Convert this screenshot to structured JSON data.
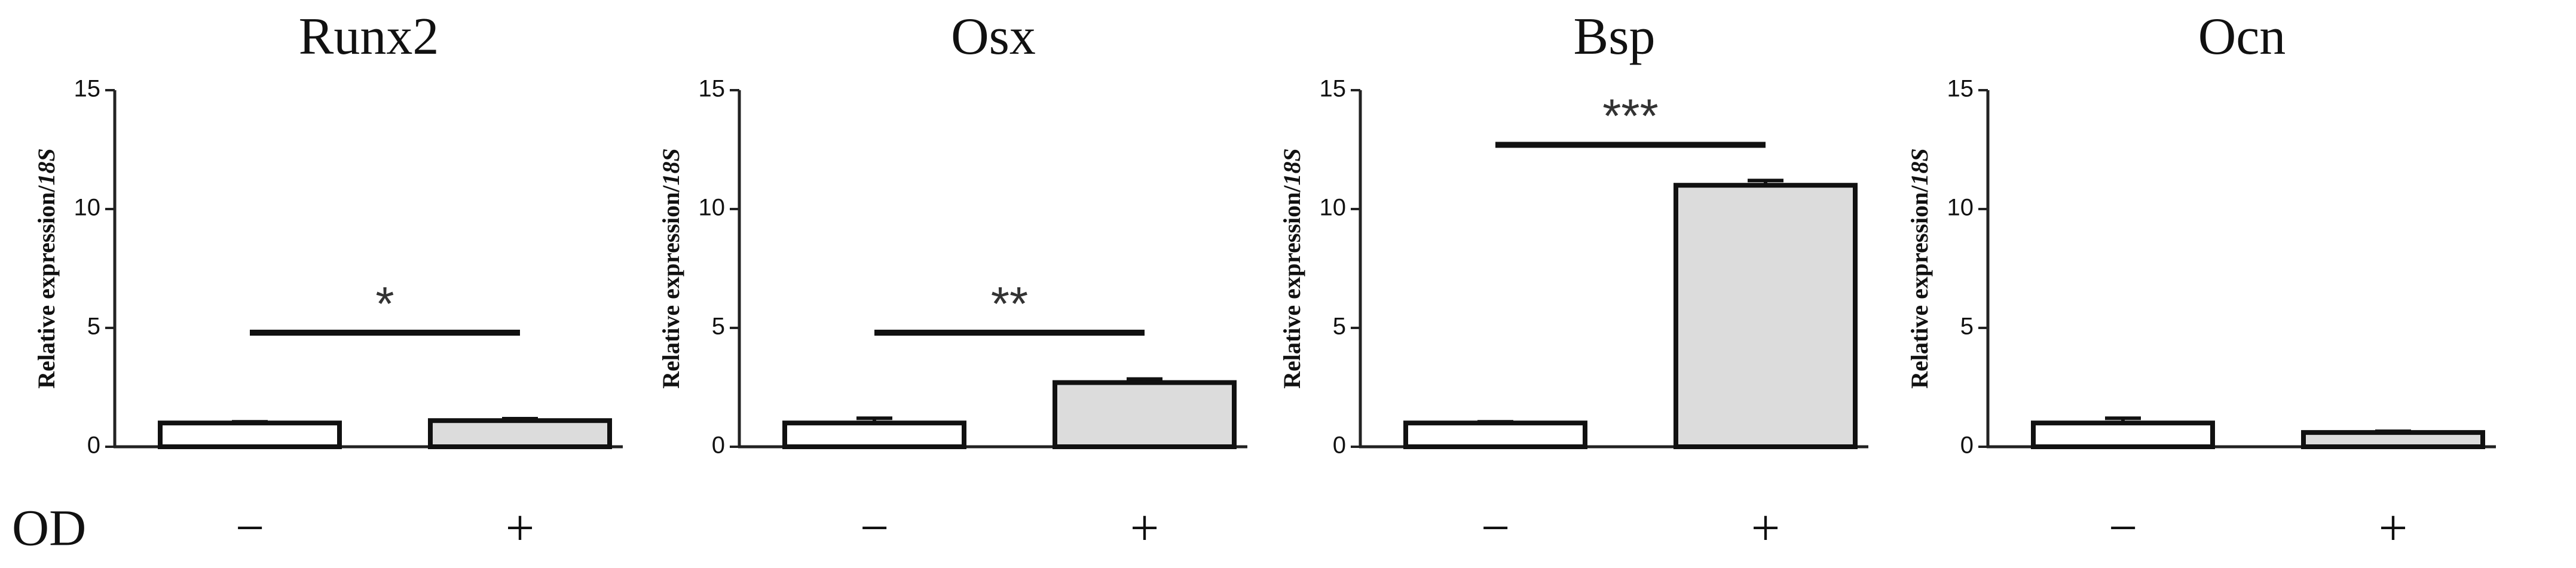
{
  "row_label": "OD",
  "chart_data": [
    {
      "type": "bar",
      "title": "Runx2",
      "y_label": "Relative expression/",
      "y_label_gene": "18S",
      "categories": [
        "−",
        "+"
      ],
      "values": [
        1.0,
        1.1
      ],
      "errors": [
        0.05,
        0.08
      ],
      "colors": [
        "#ffffff",
        "#dcdcdc"
      ],
      "ylim": [
        0,
        15
      ],
      "yticks": [
        0,
        5,
        10,
        15
      ],
      "significance": "*"
    },
    {
      "type": "bar",
      "title": "Osx",
      "y_label": "Relative expression/",
      "y_label_gene": "18S",
      "categories": [
        "−",
        "+"
      ],
      "values": [
        1.0,
        2.7
      ],
      "errors": [
        0.2,
        0.15
      ],
      "colors": [
        "#ffffff",
        "#dcdcdc"
      ],
      "ylim": [
        0,
        15
      ],
      "yticks": [
        0,
        5,
        10,
        15
      ],
      "significance": "**"
    },
    {
      "type": "bar",
      "title": "Bsp",
      "y_label": "Relative expression/",
      "y_label_gene": "18S",
      "categories": [
        "−",
        "+"
      ],
      "values": [
        1.0,
        11.0
      ],
      "errors": [
        0.05,
        0.2
      ],
      "colors": [
        "#ffffff",
        "#dcdcdc"
      ],
      "ylim": [
        0,
        15
      ],
      "yticks": [
        0,
        5,
        10,
        15
      ],
      "significance": "***"
    },
    {
      "type": "bar",
      "title": "Ocn",
      "y_label": "Relative expression/",
      "y_label_gene": "18S",
      "categories": [
        "−",
        "+"
      ],
      "values": [
        1.0,
        0.6
      ],
      "errors": [
        0.2,
        0.05
      ],
      "colors": [
        "#ffffff",
        "#dcdcdc"
      ],
      "ylim": [
        0,
        15
      ],
      "yticks": [
        0,
        5,
        10,
        15
      ]
    }
  ]
}
